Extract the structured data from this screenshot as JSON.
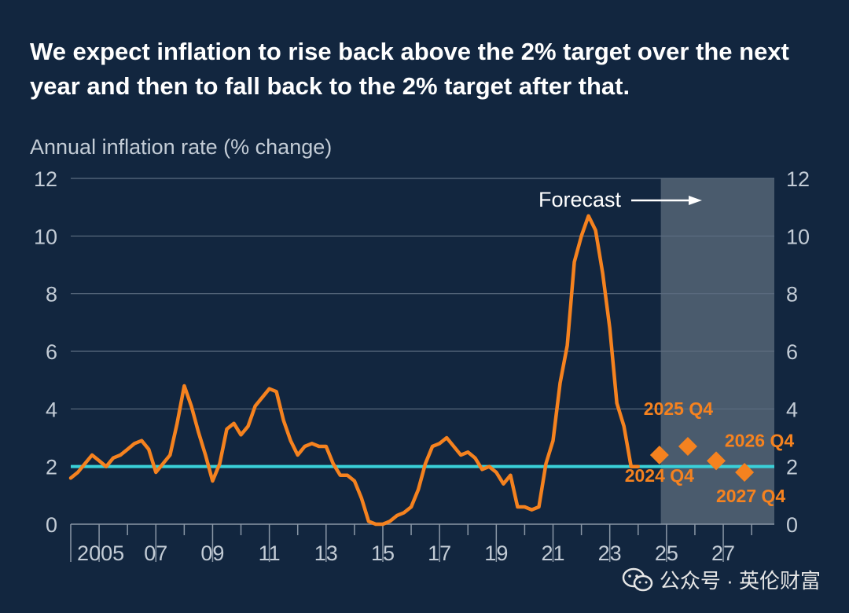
{
  "title": "We expect inflation to rise back above the 2% target over the next year and then to fall back to the 2% target after that.",
  "watermark": "公众号 · 英伦财富",
  "colors": {
    "background": "#12263f",
    "line": "#f5821f",
    "target": "#3ad0d8",
    "forecast_shade": "#4a5b6d",
    "grid": "#5d6d80"
  },
  "chart_data": {
    "type": "line",
    "ylabel": "Annual inflation rate (% change)",
    "ylim": [
      0,
      12
    ],
    "y_ticks": [
      "0",
      "2",
      "4",
      "6",
      "8",
      "10",
      "12"
    ],
    "x_tick_labels": [
      "2005",
      "07",
      "09",
      "11",
      "13",
      "15",
      "17",
      "19",
      "21",
      "23",
      "25",
      "27"
    ],
    "xlim": [
      2004.0,
      2028.8
    ],
    "target": 2,
    "forecast_start": 2024.8,
    "forecast_label": "Forecast",
    "series": [
      {
        "values": [
          [
            2004.0,
            1.6
          ],
          [
            2004.25,
            1.8
          ],
          [
            2004.5,
            2.1
          ],
          [
            2004.75,
            2.4
          ],
          [
            2005.0,
            2.2
          ],
          [
            2005.25,
            2.0
          ],
          [
            2005.5,
            2.3
          ],
          [
            2005.75,
            2.4
          ],
          [
            2006.0,
            2.6
          ],
          [
            2006.25,
            2.8
          ],
          [
            2006.5,
            2.9
          ],
          [
            2006.75,
            2.6
          ],
          [
            2007.0,
            1.8
          ],
          [
            2007.25,
            2.1
          ],
          [
            2007.5,
            2.4
          ],
          [
            2007.75,
            3.5
          ],
          [
            2008.0,
            4.8
          ],
          [
            2008.25,
            4.1
          ],
          [
            2008.5,
            3.2
          ],
          [
            2008.75,
            2.4
          ],
          [
            2009.0,
            1.5
          ],
          [
            2009.25,
            2.1
          ],
          [
            2009.5,
            3.3
          ],
          [
            2009.75,
            3.5
          ],
          [
            2010.0,
            3.1
          ],
          [
            2010.25,
            3.4
          ],
          [
            2010.5,
            4.1
          ],
          [
            2010.75,
            4.4
          ],
          [
            2011.0,
            4.7
          ],
          [
            2011.25,
            4.6
          ],
          [
            2011.5,
            3.6
          ],
          [
            2011.75,
            2.9
          ],
          [
            2012.0,
            2.4
          ],
          [
            2012.25,
            2.7
          ],
          [
            2012.5,
            2.8
          ],
          [
            2012.75,
            2.7
          ],
          [
            2013.0,
            2.7
          ],
          [
            2013.25,
            2.1
          ],
          [
            2013.5,
            1.7
          ],
          [
            2013.75,
            1.7
          ],
          [
            2014.0,
            1.5
          ],
          [
            2014.25,
            0.9
          ],
          [
            2014.5,
            0.1
          ],
          [
            2014.75,
            0.0
          ],
          [
            2015.0,
            0.0
          ],
          [
            2015.25,
            0.1
          ],
          [
            2015.5,
            0.3
          ],
          [
            2015.75,
            0.4
          ],
          [
            2016.0,
            0.6
          ],
          [
            2016.25,
            1.2
          ],
          [
            2016.5,
            2.1
          ],
          [
            2016.75,
            2.7
          ],
          [
            2017.0,
            2.8
          ],
          [
            2017.25,
            3.0
          ],
          [
            2017.5,
            2.7
          ],
          [
            2017.75,
            2.4
          ],
          [
            2018.0,
            2.5
          ],
          [
            2018.25,
            2.3
          ],
          [
            2018.5,
            1.9
          ],
          [
            2018.75,
            2.0
          ],
          [
            2019.0,
            1.8
          ],
          [
            2019.25,
            1.4
          ],
          [
            2019.5,
            1.7
          ],
          [
            2019.75,
            0.6
          ],
          [
            2020.0,
            0.6
          ],
          [
            2020.25,
            0.5
          ],
          [
            2020.5,
            0.6
          ],
          [
            2020.75,
            2.1
          ],
          [
            2021.0,
            2.9
          ],
          [
            2021.25,
            4.9
          ],
          [
            2021.5,
            6.2
          ],
          [
            2021.75,
            9.1
          ],
          [
            2022.0,
            10.0
          ],
          [
            2022.25,
            10.7
          ],
          [
            2022.5,
            10.2
          ],
          [
            2022.75,
            8.7
          ],
          [
            2023.0,
            6.8
          ],
          [
            2023.25,
            4.2
          ],
          [
            2023.5,
            3.4
          ],
          [
            2023.75,
            2.0
          ],
          [
            2024.0,
            2.0
          ]
        ]
      }
    ],
    "forecast_points": [
      {
        "label": "2024 Q4",
        "x": 2024.75,
        "y": 2.4
      },
      {
        "label": "2025 Q4",
        "x": 2025.75,
        "y": 2.7
      },
      {
        "label": "2026 Q4",
        "x": 2026.75,
        "y": 2.2
      },
      {
        "label": "2027 Q4",
        "x": 2027.75,
        "y": 1.8
      }
    ]
  }
}
